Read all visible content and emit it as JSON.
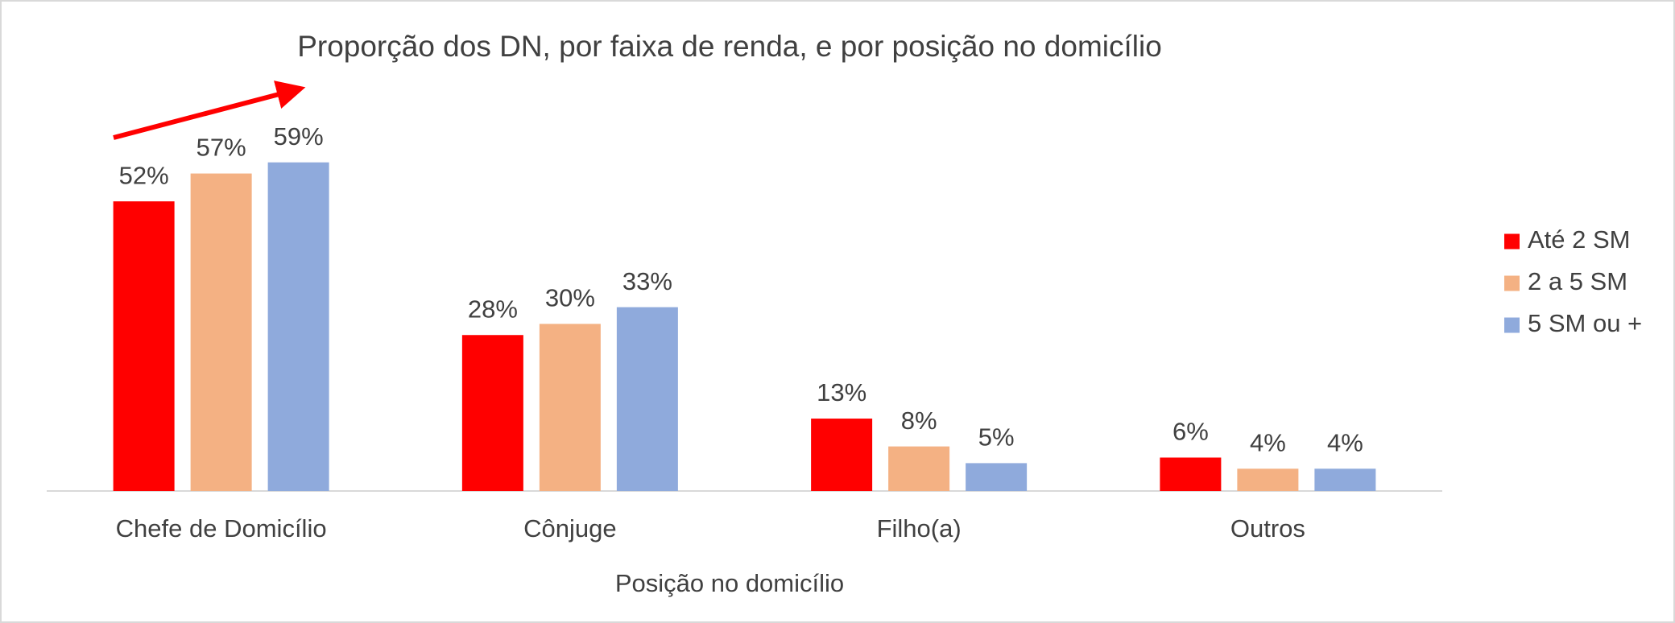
{
  "chart_data": {
    "type": "bar",
    "title": "Proporção dos DN, por faixa de renda, e por posição no domicílio",
    "x_label": "Posição no domicílio",
    "categories": [
      "Chefe de Domicílio",
      "Cônjuge",
      "Filho(a)",
      "Outros"
    ],
    "series": [
      {
        "name": "Até 2 SM",
        "color": "#ff0000",
        "values": [
          52,
          28,
          13,
          6
        ],
        "value_labels": [
          "52%",
          "28%",
          "13%",
          "6%"
        ]
      },
      {
        "name": "2 a 5 SM",
        "color": "#f4b183",
        "values": [
          57,
          30,
          8,
          4
        ],
        "value_labels": [
          "57%",
          "30%",
          "8%",
          "4%"
        ]
      },
      {
        "name": "5 SM ou +",
        "color": "#8faadc",
        "values": [
          59,
          33,
          5,
          4
        ],
        "value_labels": [
          "59%",
          "33%",
          "5%",
          "4%"
        ]
      }
    ],
    "legend": "right"
  }
}
